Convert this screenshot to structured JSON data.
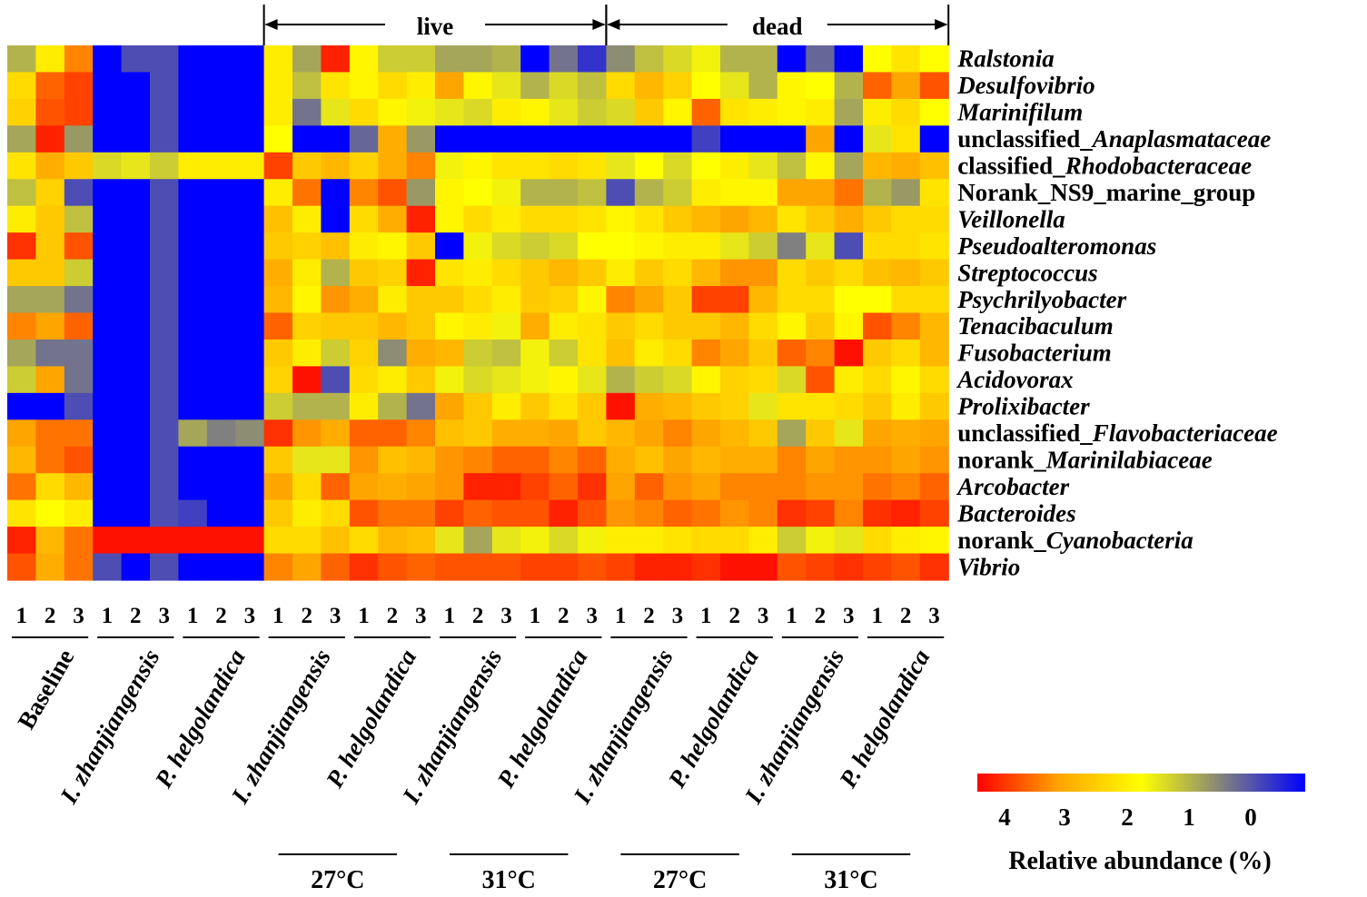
{
  "chart_data": {
    "type": "heatmap",
    "title": "",
    "colorbar": {
      "label": "Relative abundance (%)",
      "ticks": [
        "4",
        "3",
        "2",
        "1",
        "0"
      ],
      "tick_values": [
        4,
        3,
        2,
        1,
        0
      ],
      "colors": [
        "#ff0000",
        "#ffa500",
        "#ffff00",
        "#808080",
        "#0000ff"
      ]
    },
    "top_brackets": [
      {
        "label": "live",
        "start_group": 3,
        "end_group": 6
      },
      {
        "label": "dead",
        "start_group": 7,
        "end_group": 10
      }
    ],
    "groups": [
      {
        "label": "Baseline",
        "italic": false,
        "replicates": [
          "1",
          "2",
          "3"
        ]
      },
      {
        "label": "I. zhanjiangensis",
        "italic": true,
        "replicates": [
          "1",
          "2",
          "3"
        ]
      },
      {
        "label": "P. helgolandica",
        "italic": true,
        "replicates": [
          "1",
          "2",
          "3"
        ]
      },
      {
        "label": "I. zhanjiangensis",
        "italic": true,
        "replicates": [
          "1",
          "2",
          "3"
        ]
      },
      {
        "label": "P. helgolandica",
        "italic": true,
        "replicates": [
          "1",
          "2",
          "3"
        ]
      },
      {
        "label": "I. zhanjiangensis",
        "italic": true,
        "replicates": [
          "1",
          "2",
          "3"
        ]
      },
      {
        "label": "P. helgolandica",
        "italic": true,
        "replicates": [
          "1",
          "2",
          "3"
        ]
      },
      {
        "label": "I. zhanjiangensis",
        "italic": true,
        "replicates": [
          "1",
          "2",
          "3"
        ]
      },
      {
        "label": "P. helgolandica",
        "italic": true,
        "replicates": [
          "1",
          "2",
          "3"
        ]
      },
      {
        "label": "I. zhanjiangensis",
        "italic": true,
        "replicates": [
          "1",
          "2",
          "3"
        ]
      },
      {
        "label": "P. helgolandica",
        "italic": true,
        "replicates": [
          "1",
          "2",
          "3"
        ]
      }
    ],
    "temperature_labels": [
      {
        "label": "27°C",
        "groups": [
          3,
          4
        ]
      },
      {
        "label": "31°C",
        "groups": [
          5,
          6
        ]
      },
      {
        "label": "27°C",
        "groups": [
          7,
          8
        ]
      },
      {
        "label": "31°C",
        "groups": [
          9,
          10
        ]
      }
    ],
    "rows": [
      {
        "prefix": "",
        "name": "Ralstonia"
      },
      {
        "prefix": "",
        "name": "Desulfovibrio"
      },
      {
        "prefix": "",
        "name": "Marinifilum"
      },
      {
        "prefix": "unclassified_",
        "name": "Anaplasmataceae"
      },
      {
        "prefix": "classified_",
        "name": "Rhodobacteraceae"
      },
      {
        "prefix": "Norank_NS9_marine_group",
        "name": ""
      },
      {
        "prefix": "",
        "name": "Veillonella"
      },
      {
        "prefix": "",
        "name": "Pseudoalteromonas"
      },
      {
        "prefix": "",
        "name": "Streptococcus"
      },
      {
        "prefix": "",
        "name": "Psychrilyobacter"
      },
      {
        "prefix": "",
        "name": "Tenacibaculum"
      },
      {
        "prefix": "",
        "name": "Fusobacterium"
      },
      {
        "prefix": "",
        "name": "Acidovorax"
      },
      {
        "prefix": "",
        "name": "Prolixibacter"
      },
      {
        "prefix": "unclassified_",
        "name": "Flavobacteriaceae"
      },
      {
        "prefix": "norank_",
        "name": "Marinilabiaceae"
      },
      {
        "prefix": "",
        "name": "Arcobacter"
      },
      {
        "prefix": "",
        "name": "Bacteroides"
      },
      {
        "prefix": "norank_",
        "name": "Cyanobacteria"
      },
      {
        "prefix": "",
        "name": "Vibrio"
      }
    ],
    "values": [
      [
        1.4,
        2.2,
        3.2,
        0.0,
        0.6,
        0.6,
        0.0,
        0.0,
        0.0,
        2.2,
        1.3,
        3.8,
        2.1,
        1.6,
        1.6,
        1.3,
        1.3,
        1.4,
        0.0,
        0.9,
        0.4,
        1.1,
        1.5,
        1.7,
        1.9,
        1.4,
        1.4,
        0.0,
        0.8,
        0.0,
        2.0,
        2.3,
        2.0
      ],
      [
        2.4,
        3.4,
        3.6,
        0.0,
        0.0,
        0.6,
        0.0,
        0.0,
        0.0,
        2.2,
        1.5,
        2.3,
        2.1,
        2.4,
        2.2,
        3.0,
        2.1,
        1.8,
        1.4,
        1.7,
        1.5,
        2.4,
        2.8,
        2.5,
        2.0,
        1.8,
        1.4,
        2.1,
        2.0,
        1.4,
        3.4,
        3.0,
        3.5
      ],
      [
        2.5,
        3.5,
        3.6,
        0.0,
        0.0,
        0.6,
        0.0,
        0.0,
        0.0,
        2.2,
        0.9,
        1.8,
        2.4,
        2.1,
        1.9,
        1.8,
        1.7,
        2.2,
        2.1,
        1.8,
        1.6,
        1.7,
        2.6,
        2.1,
        3.4,
        2.3,
        2.2,
        2.1,
        2.2,
        1.3,
        2.2,
        2.4,
        2.0
      ],
      [
        1.3,
        3.8,
        1.2,
        0.0,
        0.0,
        0.6,
        0.0,
        0.0,
        0.0,
        2.0,
        0.0,
        0.0,
        0.8,
        2.9,
        1.2,
        0.0,
        0.0,
        0.0,
        0.0,
        0.0,
        0.0,
        0.0,
        0.0,
        0.0,
        0.5,
        0.0,
        0.0,
        0.0,
        3.0,
        0.0,
        1.8,
        2.3,
        0.0
      ],
      [
        2.3,
        2.9,
        2.6,
        1.7,
        1.8,
        1.6,
        2.2,
        2.2,
        2.2,
        3.6,
        2.6,
        2.8,
        2.5,
        2.9,
        3.2,
        1.9,
        2.1,
        2.3,
        2.3,
        2.4,
        2.3,
        1.8,
        2.0,
        1.7,
        2.0,
        2.2,
        1.8,
        1.5,
        2.1,
        1.3,
        2.8,
        2.9,
        2.7
      ],
      [
        1.5,
        2.5,
        0.6,
        0.0,
        0.0,
        0.6,
        0.0,
        0.0,
        0.0,
        2.2,
        3.3,
        0.0,
        3.2,
        3.5,
        1.2,
        2.1,
        2.0,
        1.9,
        1.4,
        1.4,
        1.5,
        0.6,
        1.4,
        1.6,
        2.2,
        2.1,
        2.1,
        3.0,
        3.0,
        3.3,
        1.4,
        1.2,
        2.3
      ],
      [
        2.2,
        2.6,
        1.5,
        0.0,
        0.0,
        0.6,
        0.0,
        0.0,
        0.0,
        2.7,
        2.2,
        0.0,
        2.4,
        2.9,
        3.8,
        2.1,
        2.4,
        2.2,
        2.4,
        2.4,
        2.3,
        2.1,
        2.3,
        2.6,
        2.8,
        3.0,
        2.8,
        2.3,
        2.6,
        2.9,
        2.6,
        2.4,
        2.4
      ],
      [
        3.7,
        2.6,
        3.5,
        0.0,
        0.0,
        0.6,
        0.0,
        0.0,
        0.0,
        2.6,
        2.5,
        2.7,
        2.2,
        2.1,
        2.6,
        0.0,
        1.9,
        1.7,
        1.6,
        1.7,
        2.0,
        2.0,
        2.1,
        2.2,
        2.2,
        1.8,
        1.6,
        1.0,
        1.8,
        0.6,
        2.4,
        2.4,
        2.3
      ],
      [
        2.6,
        2.6,
        1.6,
        0.0,
        0.0,
        0.6,
        0.0,
        0.0,
        0.0,
        2.9,
        2.2,
        1.4,
        2.6,
        2.5,
        3.8,
        2.3,
        2.2,
        2.4,
        2.6,
        2.8,
        2.6,
        2.2,
        2.6,
        2.4,
        2.8,
        3.1,
        3.1,
        2.4,
        2.6,
        2.4,
        2.7,
        2.8,
        2.6
      ],
      [
        1.3,
        1.3,
        0.9,
        0.0,
        0.0,
        0.6,
        0.0,
        0.0,
        0.0,
        2.8,
        2.1,
        3.1,
        2.9,
        2.2,
        2.6,
        2.6,
        2.4,
        2.2,
        2.6,
        2.5,
        2.1,
        3.2,
        3.0,
        2.6,
        3.6,
        3.6,
        2.8,
        2.4,
        2.4,
        2.0,
        2.0,
        2.4,
        2.4
      ],
      [
        3.2,
        3.0,
        3.4,
        0.0,
        0.0,
        0.6,
        0.0,
        0.0,
        0.0,
        3.4,
        2.5,
        2.6,
        2.6,
        2.8,
        2.6,
        2.1,
        2.2,
        1.9,
        2.9,
        2.2,
        2.3,
        2.6,
        2.4,
        2.6,
        2.6,
        2.8,
        2.4,
        2.1,
        2.6,
        2.1,
        3.5,
        3.2,
        2.8
      ],
      [
        1.3,
        0.9,
        0.9,
        0.0,
        0.0,
        0.6,
        0.0,
        0.0,
        0.0,
        2.6,
        2.2,
        1.6,
        2.5,
        1.1,
        2.9,
        2.8,
        1.6,
        1.5,
        1.9,
        1.6,
        2.3,
        2.7,
        2.2,
        2.4,
        3.2,
        3.0,
        2.6,
        3.4,
        3.2,
        3.9,
        2.6,
        2.4,
        2.8
      ],
      [
        1.6,
        3.0,
        0.9,
        0.0,
        0.0,
        0.6,
        0.0,
        0.0,
        0.0,
        2.5,
        3.9,
        0.6,
        2.4,
        2.2,
        2.6,
        1.9,
        1.7,
        1.8,
        1.9,
        2.1,
        1.8,
        1.4,
        1.6,
        1.7,
        2.1,
        2.5,
        2.4,
        1.7,
        3.5,
        2.2,
        2.4,
        2.1,
        2.4
      ],
      [
        0.0,
        0.0,
        0.6,
        0.0,
        0.0,
        0.6,
        0.0,
        0.0,
        0.0,
        1.6,
        1.4,
        1.4,
        2.2,
        1.4,
        0.9,
        3.0,
        2.6,
        2.2,
        2.6,
        2.3,
        2.6,
        3.9,
        2.9,
        2.8,
        2.6,
        2.5,
        1.8,
        2.3,
        2.3,
        2.4,
        2.6,
        2.2,
        2.6
      ],
      [
        3.0,
        3.3,
        3.3,
        0.0,
        0.0,
        0.6,
        1.3,
        1.0,
        1.1,
        3.7,
        3.1,
        2.9,
        3.4,
        3.4,
        3.2,
        2.7,
        2.6,
        2.9,
        2.9,
        3.0,
        2.6,
        2.8,
        3.0,
        3.2,
        3.0,
        2.8,
        2.6,
        1.3,
        2.6,
        1.8,
        3.0,
        2.9,
        3.0
      ],
      [
        2.8,
        3.3,
        3.5,
        0.0,
        0.0,
        0.6,
        0.0,
        0.0,
        0.0,
        2.6,
        1.8,
        1.8,
        3.1,
        2.7,
        2.8,
        3.1,
        3.2,
        3.4,
        3.4,
        3.2,
        3.4,
        2.9,
        2.7,
        3.0,
        2.8,
        2.9,
        2.9,
        3.2,
        3.0,
        3.1,
        3.1,
        3.0,
        3.1
      ],
      [
        3.3,
        2.4,
        2.8,
        0.0,
        0.0,
        0.6,
        0.0,
        0.0,
        0.0,
        3.0,
        2.4,
        3.4,
        3.0,
        2.9,
        3.0,
        3.1,
        3.8,
        3.8,
        3.6,
        3.4,
        3.7,
        3.0,
        3.4,
        3.1,
        3.0,
        3.2,
        3.2,
        3.2,
        3.1,
        3.1,
        3.3,
        3.2,
        3.4
      ],
      [
        2.3,
        2.0,
        2.2,
        0.0,
        0.0,
        0.6,
        0.5,
        0.0,
        0.0,
        2.6,
        2.2,
        2.4,
        3.5,
        3.3,
        3.3,
        3.6,
        3.4,
        3.5,
        3.5,
        3.8,
        3.5,
        3.1,
        3.2,
        3.4,
        3.3,
        3.1,
        3.2,
        3.7,
        3.6,
        3.2,
        3.7,
        3.8,
        3.6
      ],
      [
        3.8,
        2.8,
        3.3,
        3.9,
        3.9,
        3.9,
        3.9,
        3.9,
        3.9,
        2.4,
        2.4,
        2.7,
        2.4,
        2.8,
        2.7,
        1.8,
        1.3,
        1.8,
        1.9,
        1.7,
        1.9,
        2.2,
        2.2,
        2.3,
        2.4,
        2.4,
        2.2,
        1.6,
        1.9,
        1.8,
        2.4,
        2.2,
        2.1
      ],
      [
        3.5,
        2.9,
        3.3,
        0.6,
        0.0,
        0.6,
        0.0,
        0.0,
        0.0,
        3.2,
        3.0,
        3.4,
        3.7,
        3.5,
        3.4,
        3.5,
        3.5,
        3.5,
        3.6,
        3.6,
        3.5,
        3.6,
        3.8,
        3.8,
        3.7,
        3.9,
        3.9,
        3.5,
        3.6,
        3.7,
        3.6,
        3.5,
        3.7
      ]
    ]
  }
}
